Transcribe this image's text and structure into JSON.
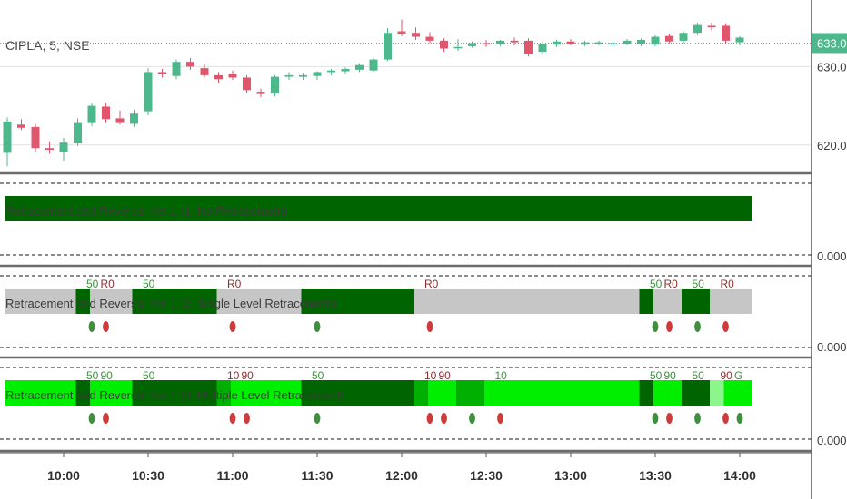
{
  "symbol_label": "CIPLA, 5, NSE",
  "last_price_label": "633.00",
  "colors": {
    "up": "#4cb88c",
    "down": "#e0566d",
    "dark_green": "#006400",
    "mid_green": "#00b000",
    "bright_green": "#00ee00",
    "light_green": "#8cf58c",
    "gray": "#c6c6c6",
    "signal_green": "#3f8f3f",
    "signal_red": "#cf3a3a",
    "level_green": "#3f8f3f",
    "level_red": "#8b2e2e"
  },
  "chart_data": [
    {
      "type": "candlestick",
      "title": "CIPLA, 5, NSE",
      "ylim": [
        616.5,
        637.8
      ],
      "y_ticks": [
        620,
        630,
        633
      ],
      "y_tick_labels": [
        "620.00",
        "630.00",
        "633.00"
      ],
      "x_ticks": [
        "10:00",
        "10:30",
        "11:00",
        "11:30",
        "12:00",
        "12:30",
        "13:00",
        "13:30",
        "14:00"
      ],
      "candles": [
        {
          "o": 619.0,
          "h": 623.5,
          "l": 617.3,
          "c": 623.0
        },
        {
          "o": 622.6,
          "h": 623.3,
          "l": 621.9,
          "c": 622.2
        },
        {
          "o": 622.3,
          "h": 622.7,
          "l": 619.1,
          "c": 619.6
        },
        {
          "o": 619.6,
          "h": 620.4,
          "l": 618.9,
          "c": 619.4
        },
        {
          "o": 619.1,
          "h": 620.9,
          "l": 618.0,
          "c": 620.3
        },
        {
          "o": 620.2,
          "h": 623.4,
          "l": 619.9,
          "c": 622.8
        },
        {
          "o": 622.8,
          "h": 625.3,
          "l": 622.4,
          "c": 625.0
        },
        {
          "o": 624.9,
          "h": 625.3,
          "l": 622.8,
          "c": 623.3
        },
        {
          "o": 623.4,
          "h": 624.4,
          "l": 622.6,
          "c": 622.8
        },
        {
          "o": 622.7,
          "h": 624.5,
          "l": 622.3,
          "c": 624.0
        },
        {
          "o": 624.3,
          "h": 629.8,
          "l": 623.8,
          "c": 629.3
        },
        {
          "o": 629.3,
          "h": 629.7,
          "l": 628.6,
          "c": 629.0
        },
        {
          "o": 628.8,
          "h": 630.9,
          "l": 628.4,
          "c": 630.6
        },
        {
          "o": 630.6,
          "h": 631.1,
          "l": 629.6,
          "c": 630.0
        },
        {
          "o": 629.8,
          "h": 630.3,
          "l": 628.6,
          "c": 628.9
        },
        {
          "o": 628.9,
          "h": 629.3,
          "l": 627.9,
          "c": 628.4
        },
        {
          "o": 629.0,
          "h": 629.5,
          "l": 628.3,
          "c": 628.6
        },
        {
          "o": 628.6,
          "h": 628.9,
          "l": 626.6,
          "c": 627.0
        },
        {
          "o": 626.8,
          "h": 627.2,
          "l": 626.1,
          "c": 626.5
        },
        {
          "o": 626.6,
          "h": 628.9,
          "l": 626.2,
          "c": 628.7
        },
        {
          "o": 628.7,
          "h": 629.3,
          "l": 628.3,
          "c": 628.9
        },
        {
          "o": 628.7,
          "h": 629.1,
          "l": 628.3,
          "c": 628.9
        },
        {
          "o": 628.8,
          "h": 629.4,
          "l": 628.3,
          "c": 629.3
        },
        {
          "o": 629.3,
          "h": 629.7,
          "l": 628.9,
          "c": 629.5
        },
        {
          "o": 629.4,
          "h": 629.9,
          "l": 629.0,
          "c": 629.7
        },
        {
          "o": 629.6,
          "h": 630.4,
          "l": 629.3,
          "c": 630.2
        },
        {
          "o": 629.5,
          "h": 631.1,
          "l": 629.3,
          "c": 630.9
        },
        {
          "o": 630.9,
          "h": 634.9,
          "l": 630.7,
          "c": 634.3
        },
        {
          "o": 634.5,
          "h": 636.0,
          "l": 633.9,
          "c": 634.2
        },
        {
          "o": 634.3,
          "h": 635.0,
          "l": 633.4,
          "c": 633.8
        },
        {
          "o": 633.8,
          "h": 634.4,
          "l": 633.0,
          "c": 633.3
        },
        {
          "o": 633.3,
          "h": 633.6,
          "l": 631.9,
          "c": 632.3
        },
        {
          "o": 632.4,
          "h": 633.5,
          "l": 632.0,
          "c": 632.5
        },
        {
          "o": 632.6,
          "h": 633.2,
          "l": 632.4,
          "c": 633.0
        },
        {
          "o": 633.0,
          "h": 633.4,
          "l": 632.5,
          "c": 632.9
        },
        {
          "o": 632.9,
          "h": 633.4,
          "l": 632.6,
          "c": 633.3
        },
        {
          "o": 633.3,
          "h": 633.7,
          "l": 632.7,
          "c": 633.1
        },
        {
          "o": 633.3,
          "h": 633.6,
          "l": 631.3,
          "c": 631.6
        },
        {
          "o": 631.9,
          "h": 633.1,
          "l": 631.6,
          "c": 632.9
        },
        {
          "o": 632.8,
          "h": 633.4,
          "l": 632.5,
          "c": 633.2
        },
        {
          "o": 633.2,
          "h": 633.5,
          "l": 632.7,
          "c": 632.9
        },
        {
          "o": 632.8,
          "h": 633.3,
          "l": 632.6,
          "c": 633.1
        },
        {
          "o": 632.9,
          "h": 633.3,
          "l": 632.7,
          "c": 633.1
        },
        {
          "o": 632.9,
          "h": 633.3,
          "l": 632.6,
          "c": 633.0
        },
        {
          "o": 632.9,
          "h": 633.5,
          "l": 632.7,
          "c": 633.3
        },
        {
          "o": 632.9,
          "h": 633.6,
          "l": 632.6,
          "c": 633.4
        },
        {
          "o": 632.8,
          "h": 634.0,
          "l": 632.6,
          "c": 633.8
        },
        {
          "o": 633.9,
          "h": 634.2,
          "l": 633.0,
          "c": 633.2
        },
        {
          "o": 633.3,
          "h": 634.5,
          "l": 633.0,
          "c": 634.3
        },
        {
          "o": 634.3,
          "h": 635.6,
          "l": 634.0,
          "c": 635.3
        },
        {
          "o": 635.2,
          "h": 635.6,
          "l": 634.6,
          "c": 635.0
        },
        {
          "o": 635.2,
          "h": 635.5,
          "l": 632.9,
          "c": 633.3
        },
        {
          "o": 633.1,
          "h": 633.9,
          "l": 632.7,
          "c": 633.7
        }
      ]
    },
    {
      "type": "band",
      "title": "Retracement and Reversal Ver 1 (1: No Retracement)",
      "y_tick_labels": [
        "0.0000"
      ],
      "segments": [
        {
          "from": 0,
          "to": 53,
          "color": "dark_green"
        }
      ],
      "signals": [],
      "labels": []
    },
    {
      "type": "band",
      "title": "Retracement and Reversal Ver 1 (2: Single Level Retracement)",
      "y_tick_labels": [
        "0.0000"
      ],
      "segments": [
        {
          "from": 0,
          "to": 5,
          "color": "gray"
        },
        {
          "from": 5,
          "to": 6,
          "color": "dark_green"
        },
        {
          "from": 6,
          "to": 9,
          "color": "gray"
        },
        {
          "from": 9,
          "to": 15,
          "color": "dark_green"
        },
        {
          "from": 15,
          "to": 21,
          "color": "gray"
        },
        {
          "from": 21,
          "to": 29,
          "color": "dark_green"
        },
        {
          "from": 29,
          "to": 45,
          "color": "gray"
        },
        {
          "from": 45,
          "to": 46,
          "color": "dark_green"
        },
        {
          "from": 46,
          "to": 48,
          "color": "gray"
        },
        {
          "from": 48,
          "to": 50,
          "color": "dark_green"
        },
        {
          "from": 50,
          "to": 53,
          "color": "gray"
        }
      ],
      "signals": [
        {
          "i": 6,
          "color": "signal_green"
        },
        {
          "i": 7,
          "color": "signal_red"
        },
        {
          "i": 16,
          "color": "signal_red"
        },
        {
          "i": 22,
          "color": "signal_green"
        },
        {
          "i": 30,
          "color": "signal_red"
        },
        {
          "i": 46,
          "color": "signal_green"
        },
        {
          "i": 47,
          "color": "signal_red"
        },
        {
          "i": 49,
          "color": "signal_green"
        },
        {
          "i": 51,
          "color": "signal_red"
        }
      ],
      "labels": [
        {
          "i": 6,
          "text": "50",
          "color": "level_green"
        },
        {
          "i": 7,
          "text": "R0",
          "color": "level_red"
        },
        {
          "i": 10,
          "text": "50",
          "color": "level_green"
        },
        {
          "i": 16,
          "text": "R0",
          "color": "level_red"
        },
        {
          "i": 30,
          "text": "R0",
          "color": "level_red"
        },
        {
          "i": 46,
          "text": "50",
          "color": "level_green"
        },
        {
          "i": 47,
          "text": "R0",
          "color": "level_red"
        },
        {
          "i": 49,
          "text": "50",
          "color": "level_green"
        },
        {
          "i": 51,
          "text": "R0",
          "color": "level_red"
        }
      ]
    },
    {
      "type": "band",
      "title": "Retracement and Reversal Ver 1 (3: Multiple Level Retracement)",
      "y_tick_labels": [
        "0.0000"
      ],
      "segments": [
        {
          "from": 0,
          "to": 5,
          "color": "bright_green"
        },
        {
          "from": 5,
          "to": 6,
          "color": "dark_green"
        },
        {
          "from": 6,
          "to": 9,
          "color": "bright_green"
        },
        {
          "from": 9,
          "to": 15,
          "color": "dark_green"
        },
        {
          "from": 15,
          "to": 16,
          "color": "mid_green"
        },
        {
          "from": 16,
          "to": 21,
          "color": "bright_green"
        },
        {
          "from": 21,
          "to": 29,
          "color": "dark_green"
        },
        {
          "from": 29,
          "to": 30,
          "color": "mid_green"
        },
        {
          "from": 30,
          "to": 32,
          "color": "bright_green"
        },
        {
          "from": 32,
          "to": 34,
          "color": "mid_green"
        },
        {
          "from": 34,
          "to": 45,
          "color": "bright_green"
        },
        {
          "from": 45,
          "to": 46,
          "color": "dark_green"
        },
        {
          "from": 46,
          "to": 48,
          "color": "bright_green"
        },
        {
          "from": 48,
          "to": 50,
          "color": "dark_green"
        },
        {
          "from": 50,
          "to": 51,
          "color": "light_green"
        },
        {
          "from": 51,
          "to": 53,
          "color": "bright_green"
        }
      ],
      "signals": [
        {
          "i": 6,
          "color": "signal_green"
        },
        {
          "i": 7,
          "color": "signal_red"
        },
        {
          "i": 16,
          "color": "signal_red"
        },
        {
          "i": 17,
          "color": "signal_red"
        },
        {
          "i": 22,
          "color": "signal_green"
        },
        {
          "i": 30,
          "color": "signal_red"
        },
        {
          "i": 31,
          "color": "signal_red"
        },
        {
          "i": 33,
          "color": "signal_green"
        },
        {
          "i": 35,
          "color": "signal_red"
        },
        {
          "i": 46,
          "color": "signal_green"
        },
        {
          "i": 47,
          "color": "signal_red"
        },
        {
          "i": 49,
          "color": "signal_green"
        },
        {
          "i": 51,
          "color": "signal_red"
        },
        {
          "i": 52,
          "color": "signal_green"
        }
      ],
      "labels": [
        {
          "i": 6,
          "text": "50",
          "color": "level_green"
        },
        {
          "i": 7,
          "text": "90",
          "color": "level_green"
        },
        {
          "i": 10,
          "text": "50",
          "color": "level_green"
        },
        {
          "i": 16,
          "text": "10",
          "color": "level_red"
        },
        {
          "i": 17,
          "text": "90",
          "color": "level_red"
        },
        {
          "i": 22,
          "text": "50",
          "color": "level_green"
        },
        {
          "i": 30,
          "text": "10",
          "color": "level_red"
        },
        {
          "i": 31,
          "text": "90",
          "color": "level_red"
        },
        {
          "i": 35,
          "text": "10",
          "color": "level_green"
        },
        {
          "i": 46,
          "text": "50",
          "color": "level_green"
        },
        {
          "i": 47,
          "text": "90",
          "color": "level_green"
        },
        {
          "i": 49,
          "text": "50",
          "color": "level_green"
        },
        {
          "i": 51,
          "text": "90",
          "color": "level_red"
        },
        {
          "i": 52,
          "text": "G",
          "color": "level_green"
        }
      ]
    }
  ]
}
